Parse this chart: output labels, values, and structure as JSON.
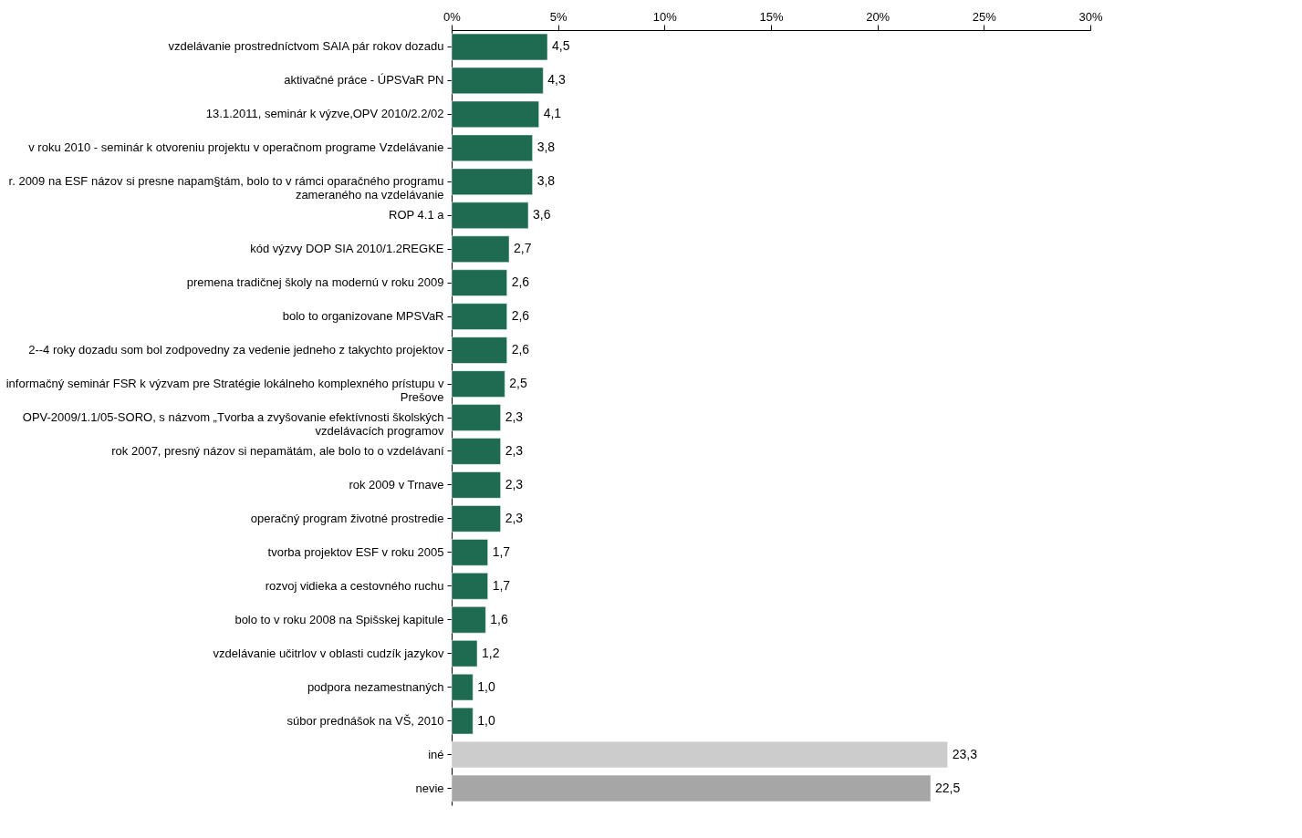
{
  "chart_data": {
    "type": "bar",
    "orientation": "horizontal",
    "categories": [
      "vzdelávanie prostredníctvom SAIA pár rokov dozadu",
      "aktivačné práce - ÚPSVaR PN",
      "13.1.2011, seminár k výzve,OPV 2010/2.2/02",
      "v roku 2010 - seminár k otvoreniu projektu v operačnom programe Vzdelávanie",
      "r. 2009  na ESF názov si presne napam§tám, bolo to v rámci oparačného programu zameraného na vzdelávanie",
      "ROP 4.1 a",
      "kód výzvy DOP SIA 2010/1.2REGKE",
      "premena tradičnej školy na modernú v roku 2009",
      "bolo to organizovane MPSVaR",
      "2--4 roky dozadu som bol zodpovedny za vedenie jedneho z takychto projektov",
      "informačný seminár FSR k výzvam pre Stratégie lokálneho komplexného prístupu v Prešove",
      "OPV-2009/1.1/05-SORO, s názvom „Tvorba a zvyšovanie efektívnosti školských vzdelávacích programov",
      "rok 2007, presný názov si nepamätám, ale bolo to o vzdelávaní",
      "rok 2009 v Trnave",
      "operačný program životné prostredie",
      "tvorba projektov ESF v roku 2005",
      "rozvoj vidieka a cestovného ruchu",
      "bolo to v roku 2008 na Spišskej kapitule",
      "vzdelávanie učitrlov v oblasti cudzík jazykov",
      "podpora nezamestnaných",
      "súbor prednášok na VŠ, 2010",
      "iné",
      "nevie"
    ],
    "values": [
      4.5,
      4.3,
      4.1,
      3.8,
      3.8,
      3.6,
      2.7,
      2.6,
      2.6,
      2.6,
      2.5,
      2.3,
      2.3,
      2.3,
      2.3,
      1.7,
      1.7,
      1.6,
      1.2,
      1.0,
      1.0,
      23.3,
      22.5
    ],
    "value_labels": [
      "4,5",
      "4,3",
      "4,1",
      "3,8",
      "3,8",
      "3,6",
      "2,7",
      "2,6",
      "2,6",
      "2,6",
      "2,5",
      "2,3",
      "2,3",
      "2,3",
      "2,3",
      "1,7",
      "1,7",
      "1,6",
      "1,2",
      "1,0",
      "1,0",
      "23,3",
      "22,5"
    ],
    "colors": [
      "#1e6b52",
      "#1e6b52",
      "#1e6b52",
      "#1e6b52",
      "#1e6b52",
      "#1e6b52",
      "#1e6b52",
      "#1e6b52",
      "#1e6b52",
      "#1e6b52",
      "#1e6b52",
      "#1e6b52",
      "#1e6b52",
      "#1e6b52",
      "#1e6b52",
      "#1e6b52",
      "#1e6b52",
      "#1e6b52",
      "#1e6b52",
      "#1e6b52",
      "#1e6b52",
      "#cccccc",
      "#a6a6a6"
    ],
    "xlim": [
      0,
      30
    ],
    "xticks": [
      {
        "value": 0,
        "label": "0%"
      },
      {
        "value": 5,
        "label": "5%"
      },
      {
        "value": 10,
        "label": "10%"
      },
      {
        "value": 15,
        "label": "15%"
      },
      {
        "value": 20,
        "label": "20%"
      },
      {
        "value": 25,
        "label": "25%"
      },
      {
        "value": 30,
        "label": "30%"
      }
    ],
    "grid": false
  }
}
